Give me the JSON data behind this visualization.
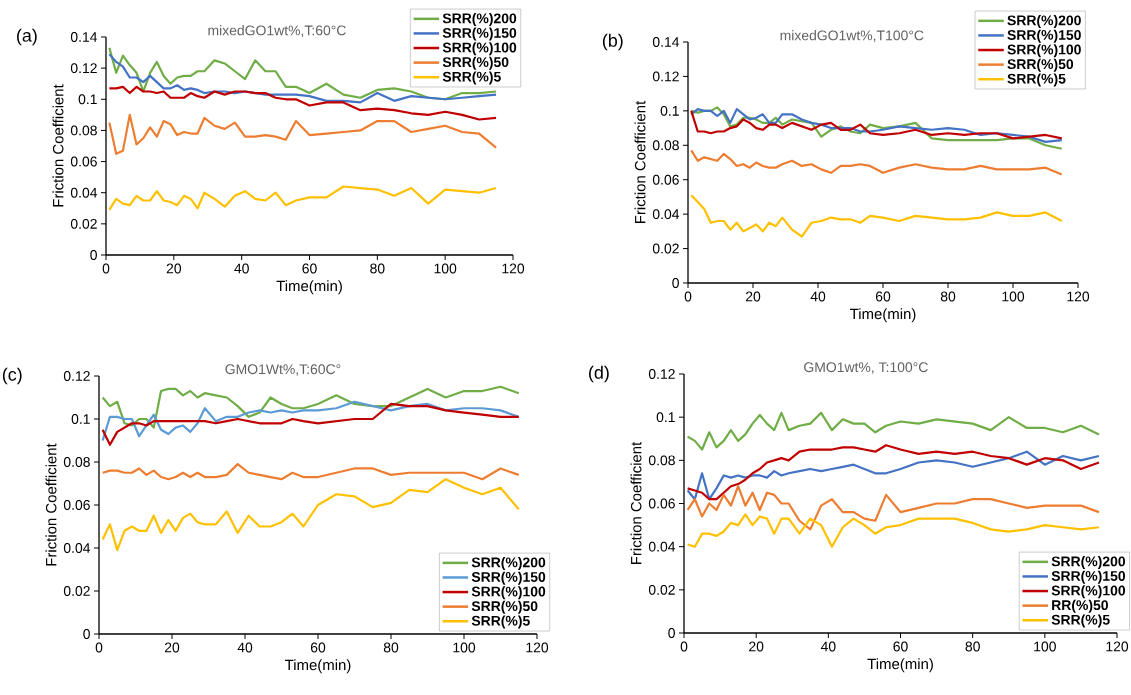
{
  "chart_data": [
    {
      "type": "line",
      "title": "mixedGO1wt%,T:60°C",
      "xlabel": "Time(min)",
      "ylabel": "Friction Coefficient",
      "annotations": [
        "(a)"
      ],
      "legend": "top right",
      "xlim": [
        0,
        120
      ],
      "ylim": [
        0,
        0.14
      ],
      "xticks": [
        0,
        20,
        40,
        60,
        80,
        100,
        120
      ],
      "yticks": [
        0,
        0.02,
        0.04,
        0.06,
        0.08,
        0.1,
        0.12,
        0.14
      ],
      "x": [
        1,
        3,
        5,
        7,
        9,
        11,
        13,
        15,
        17,
        19,
        21,
        23,
        25,
        27,
        29,
        32,
        35,
        38,
        41,
        44,
        47,
        50,
        53,
        56,
        60,
        65,
        70,
        75,
        80,
        85,
        90,
        95,
        100,
        105,
        110,
        115
      ],
      "series": [
        {
          "name": "SRR(%)200",
          "color": "#70ad47",
          "values": [
            0.133,
            0.117,
            0.128,
            0.122,
            0.117,
            0.105,
            0.117,
            0.124,
            0.115,
            0.11,
            0.114,
            0.115,
            0.115,
            0.118,
            0.118,
            0.125,
            0.123,
            0.118,
            0.113,
            0.125,
            0.118,
            0.118,
            0.108,
            0.108,
            0.104,
            0.11,
            0.103,
            0.101,
            0.106,
            0.107,
            0.105,
            0.101,
            0.1,
            0.104,
            0.104,
            0.105
          ]
        },
        {
          "name": "SRR(%)150",
          "color": "#4472c4",
          "values": [
            0.129,
            0.124,
            0.121,
            0.114,
            0.114,
            0.111,
            0.115,
            0.111,
            0.107,
            0.107,
            0.109,
            0.106,
            0.107,
            0.106,
            0.104,
            0.105,
            0.105,
            0.104,
            0.105,
            0.104,
            0.103,
            0.103,
            0.103,
            0.103,
            0.102,
            0.099,
            0.099,
            0.098,
            0.104,
            0.099,
            0.102,
            0.101,
            0.1,
            0.101,
            0.102,
            0.103
          ]
        },
        {
          "name": "SRR(%)100",
          "color": "#c00000",
          "values": [
            0.107,
            0.107,
            0.108,
            0.104,
            0.108,
            0.105,
            0.105,
            0.104,
            0.105,
            0.101,
            0.101,
            0.101,
            0.104,
            0.102,
            0.101,
            0.105,
            0.103,
            0.105,
            0.105,
            0.104,
            0.104,
            0.101,
            0.1,
            0.1,
            0.096,
            0.098,
            0.098,
            0.093,
            0.094,
            0.093,
            0.091,
            0.09,
            0.092,
            0.09,
            0.087,
            0.088
          ]
        },
        {
          "name": "SRR(%)50",
          "color": "#ed7d31",
          "values": [
            0.085,
            0.065,
            0.067,
            0.09,
            0.071,
            0.075,
            0.082,
            0.076,
            0.086,
            0.084,
            0.077,
            0.079,
            0.078,
            0.078,
            0.088,
            0.083,
            0.081,
            0.085,
            0.076,
            0.076,
            0.077,
            0.076,
            0.074,
            0.086,
            0.077,
            0.078,
            0.079,
            0.08,
            0.086,
            0.086,
            0.079,
            0.081,
            0.083,
            0.079,
            0.078,
            0.069
          ]
        },
        {
          "name": "SRR(%)5",
          "color": "#ffc000",
          "values": [
            0.029,
            0.036,
            0.033,
            0.032,
            0.038,
            0.035,
            0.035,
            0.041,
            0.035,
            0.034,
            0.032,
            0.038,
            0.036,
            0.03,
            0.04,
            0.036,
            0.031,
            0.038,
            0.041,
            0.036,
            0.035,
            0.04,
            0.032,
            0.035,
            0.037,
            0.037,
            0.044,
            0.043,
            0.042,
            0.038,
            0.043,
            0.033,
            0.042,
            0.041,
            0.04,
            0.043
          ]
        }
      ]
    },
    {
      "type": "line",
      "title": "mixedGO1wt%,T100°C",
      "xlabel": "Time(min)",
      "ylabel": "Friction Coefficient",
      "annotations": [
        "(b)"
      ],
      "legend": "top right",
      "xlim": [
        0,
        120
      ],
      "ylim": [
        0,
        0.14
      ],
      "xticks": [
        0,
        20,
        40,
        60,
        80,
        100,
        120
      ],
      "yticks": [
        0,
        0.02,
        0.04,
        0.06,
        0.08,
        0.1,
        0.12,
        0.14
      ],
      "x": [
        1,
        3,
        5,
        7,
        9,
        11,
        13,
        15,
        17,
        19,
        21,
        23,
        25,
        27,
        29,
        32,
        35,
        38,
        41,
        44,
        47,
        50,
        53,
        56,
        60,
        65,
        70,
        75,
        80,
        85,
        90,
        95,
        100,
        105,
        110,
        115
      ],
      "series": [
        {
          "name": "SRR(%)200",
          "color": "#70ad47",
          "values": [
            0.1,
            0.099,
            0.1,
            0.1,
            0.102,
            0.098,
            0.091,
            0.092,
            0.096,
            0.096,
            0.095,
            0.093,
            0.093,
            0.096,
            0.092,
            0.095,
            0.094,
            0.093,
            0.085,
            0.089,
            0.091,
            0.088,
            0.087,
            0.092,
            0.09,
            0.091,
            0.093,
            0.084,
            0.083,
            0.083,
            0.083,
            0.083,
            0.084,
            0.084,
            0.08,
            0.078
          ]
        },
        {
          "name": "SRR(%)150",
          "color": "#4472c4",
          "values": [
            0.098,
            0.101,
            0.1,
            0.1,
            0.097,
            0.1,
            0.093,
            0.101,
            0.098,
            0.095,
            0.096,
            0.098,
            0.093,
            0.093,
            0.098,
            0.098,
            0.095,
            0.093,
            0.092,
            0.09,
            0.09,
            0.09,
            0.088,
            0.088,
            0.089,
            0.091,
            0.09,
            0.089,
            0.09,
            0.089,
            0.086,
            0.087,
            0.086,
            0.085,
            0.082,
            0.083
          ]
        },
        {
          "name": "SRR(%)100",
          "color": "#c00000",
          "values": [
            0.1,
            0.088,
            0.088,
            0.087,
            0.088,
            0.088,
            0.09,
            0.091,
            0.095,
            0.093,
            0.09,
            0.089,
            0.092,
            0.092,
            0.09,
            0.093,
            0.091,
            0.089,
            0.092,
            0.093,
            0.089,
            0.089,
            0.092,
            0.087,
            0.086,
            0.087,
            0.089,
            0.086,
            0.087,
            0.086,
            0.087,
            0.087,
            0.084,
            0.085,
            0.086,
            0.084
          ]
        },
        {
          "name": "SRR(%)50",
          "color": "#ed7d31",
          "values": [
            0.077,
            0.071,
            0.073,
            0.072,
            0.071,
            0.075,
            0.072,
            0.068,
            0.069,
            0.067,
            0.07,
            0.068,
            0.067,
            0.067,
            0.069,
            0.071,
            0.068,
            0.069,
            0.066,
            0.064,
            0.068,
            0.068,
            0.069,
            0.068,
            0.064,
            0.067,
            0.069,
            0.067,
            0.066,
            0.066,
            0.068,
            0.066,
            0.066,
            0.066,
            0.067,
            0.063
          ]
        },
        {
          "name": "SRR(%)5",
          "color": "#ffc000",
          "values": [
            0.051,
            0.047,
            0.043,
            0.035,
            0.036,
            0.036,
            0.031,
            0.035,
            0.03,
            0.032,
            0.034,
            0.03,
            0.035,
            0.033,
            0.038,
            0.031,
            0.027,
            0.035,
            0.036,
            0.038,
            0.037,
            0.037,
            0.035,
            0.039,
            0.038,
            0.036,
            0.039,
            0.038,
            0.037,
            0.037,
            0.038,
            0.041,
            0.039,
            0.039,
            0.041,
            0.036
          ]
        }
      ]
    },
    {
      "type": "line",
      "title": "GMO1Wt%,T:60C°",
      "xlabel": "Time(min)",
      "ylabel": "Friction Coefficient",
      "annotations": [
        "(c)"
      ],
      "legend": "bottom right",
      "xlim": [
        0,
        120
      ],
      "ylim": [
        0,
        0.12
      ],
      "xticks": [
        0,
        20,
        40,
        60,
        80,
        100,
        120
      ],
      "yticks": [
        0,
        0.02,
        0.04,
        0.06,
        0.08,
        0.1,
        0.12
      ],
      "x": [
        1,
        3,
        5,
        7,
        9,
        11,
        13,
        15,
        17,
        19,
        21,
        23,
        25,
        27,
        29,
        32,
        35,
        38,
        41,
        44,
        47,
        50,
        53,
        56,
        60,
        65,
        70,
        75,
        80,
        85,
        90,
        95,
        100,
        105,
        110,
        115
      ],
      "series": [
        {
          "name": "SRR(%)200",
          "color": "#70ad47",
          "values": [
            0.11,
            0.106,
            0.108,
            0.098,
            0.097,
            0.1,
            0.1,
            0.096,
            0.113,
            0.114,
            0.114,
            0.111,
            0.113,
            0.11,
            0.112,
            0.111,
            0.11,
            0.106,
            0.101,
            0.103,
            0.11,
            0.107,
            0.105,
            0.105,
            0.107,
            0.111,
            0.107,
            0.106,
            0.106,
            0.11,
            0.114,
            0.11,
            0.113,
            0.113,
            0.115,
            0.112
          ]
        },
        {
          "name": "SRR(%)150",
          "color": "#5b9bd5",
          "values": [
            0.09,
            0.101,
            0.101,
            0.1,
            0.1,
            0.092,
            0.097,
            0.102,
            0.095,
            0.093,
            0.096,
            0.097,
            0.094,
            0.098,
            0.105,
            0.099,
            0.101,
            0.101,
            0.103,
            0.104,
            0.103,
            0.104,
            0.103,
            0.104,
            0.104,
            0.105,
            0.108,
            0.106,
            0.104,
            0.106,
            0.107,
            0.104,
            0.105,
            0.105,
            0.104,
            0.101
          ]
        },
        {
          "name": "SRR(%)100",
          "color": "#c00000",
          "values": [
            0.095,
            0.088,
            0.094,
            0.096,
            0.098,
            0.098,
            0.097,
            0.099,
            0.099,
            0.099,
            0.099,
            0.099,
            0.099,
            0.099,
            0.099,
            0.098,
            0.099,
            0.1,
            0.099,
            0.098,
            0.098,
            0.098,
            0.1,
            0.099,
            0.098,
            0.099,
            0.1,
            0.1,
            0.107,
            0.106,
            0.106,
            0.104,
            0.103,
            0.102,
            0.101,
            0.101
          ]
        },
        {
          "name": "SRR(%)50",
          "color": "#ed7d31",
          "values": [
            0.075,
            0.076,
            0.076,
            0.075,
            0.075,
            0.077,
            0.074,
            0.076,
            0.073,
            0.072,
            0.073,
            0.075,
            0.073,
            0.075,
            0.073,
            0.073,
            0.074,
            0.079,
            0.075,
            0.074,
            0.073,
            0.072,
            0.075,
            0.073,
            0.073,
            0.075,
            0.077,
            0.077,
            0.074,
            0.075,
            0.075,
            0.075,
            0.075,
            0.072,
            0.077,
            0.074
          ]
        },
        {
          "name": "SRR(%)5",
          "color": "#ffc000",
          "values": [
            0.044,
            0.051,
            0.039,
            0.048,
            0.05,
            0.048,
            0.048,
            0.055,
            0.047,
            0.053,
            0.048,
            0.054,
            0.056,
            0.052,
            0.051,
            0.051,
            0.057,
            0.047,
            0.055,
            0.05,
            0.05,
            0.052,
            0.056,
            0.05,
            0.06,
            0.065,
            0.064,
            0.059,
            0.061,
            0.067,
            0.066,
            0.072,
            0.068,
            0.065,
            0.068,
            0.058
          ]
        }
      ]
    },
    {
      "type": "line",
      "title": "GMO1wt%, T:100°C",
      "xlabel": "Time(min)",
      "ylabel": "Friction Coefficient",
      "annotations": [
        "(d)"
      ],
      "legend": "bottom right",
      "xlim": [
        0,
        120
      ],
      "ylim": [
        0,
        0.12
      ],
      "xticks": [
        0,
        20,
        40,
        60,
        80,
        100,
        120
      ],
      "yticks": [
        0,
        0.02,
        0.04,
        0.06,
        0.08,
        0.1,
        0.12
      ],
      "x": [
        1,
        3,
        5,
        7,
        9,
        11,
        13,
        15,
        17,
        19,
        21,
        23,
        25,
        27,
        29,
        32,
        35,
        38,
        41,
        44,
        47,
        50,
        53,
        56,
        60,
        65,
        70,
        75,
        80,
        85,
        90,
        95,
        100,
        105,
        110,
        115
      ],
      "series": [
        {
          "name": "SRR(%)200",
          "color": "#70ad47",
          "values": [
            0.091,
            0.089,
            0.085,
            0.093,
            0.086,
            0.089,
            0.094,
            0.089,
            0.092,
            0.097,
            0.101,
            0.097,
            0.094,
            0.102,
            0.094,
            0.096,
            0.097,
            0.102,
            0.094,
            0.099,
            0.097,
            0.097,
            0.093,
            0.096,
            0.098,
            0.097,
            0.099,
            0.098,
            0.097,
            0.094,
            0.1,
            0.095,
            0.095,
            0.093,
            0.096,
            0.092
          ]
        },
        {
          "name": "SRR(%)150",
          "color": "#4472c4",
          "values": [
            0.066,
            0.062,
            0.074,
            0.062,
            0.067,
            0.073,
            0.072,
            0.073,
            0.072,
            0.073,
            0.073,
            0.072,
            0.075,
            0.073,
            0.074,
            0.075,
            0.076,
            0.075,
            0.076,
            0.077,
            0.078,
            0.076,
            0.074,
            0.074,
            0.076,
            0.079,
            0.08,
            0.079,
            0.077,
            0.079,
            0.081,
            0.084,
            0.078,
            0.082,
            0.08,
            0.082
          ]
        },
        {
          "name": "SRR(%)100",
          "color": "#c00000",
          "values": [
            0.067,
            0.066,
            0.065,
            0.062,
            0.062,
            0.065,
            0.068,
            0.069,
            0.071,
            0.074,
            0.076,
            0.079,
            0.08,
            0.081,
            0.08,
            0.084,
            0.085,
            0.085,
            0.085,
            0.086,
            0.086,
            0.085,
            0.084,
            0.087,
            0.085,
            0.083,
            0.084,
            0.083,
            0.084,
            0.082,
            0.081,
            0.078,
            0.081,
            0.08,
            0.076,
            0.079
          ]
        },
        {
          "name": "RR(%)50",
          "color": "#ed7d31",
          "values": [
            0.057,
            0.062,
            0.054,
            0.06,
            0.057,
            0.064,
            0.059,
            0.068,
            0.059,
            0.065,
            0.057,
            0.065,
            0.064,
            0.06,
            0.06,
            0.052,
            0.048,
            0.059,
            0.062,
            0.056,
            0.056,
            0.053,
            0.052,
            0.064,
            0.056,
            0.058,
            0.06,
            0.06,
            0.062,
            0.062,
            0.06,
            0.058,
            0.059,
            0.059,
            0.059,
            0.056
          ]
        },
        {
          "name": "SRR(%)5",
          "color": "#ffc000",
          "values": [
            0.041,
            0.04,
            0.046,
            0.046,
            0.045,
            0.047,
            0.051,
            0.05,
            0.055,
            0.05,
            0.054,
            0.053,
            0.046,
            0.053,
            0.053,
            0.046,
            0.053,
            0.05,
            0.04,
            0.049,
            0.053,
            0.05,
            0.046,
            0.049,
            0.05,
            0.053,
            0.053,
            0.053,
            0.051,
            0.048,
            0.047,
            0.048,
            0.05,
            0.049,
            0.048,
            0.049
          ]
        }
      ]
    }
  ]
}
